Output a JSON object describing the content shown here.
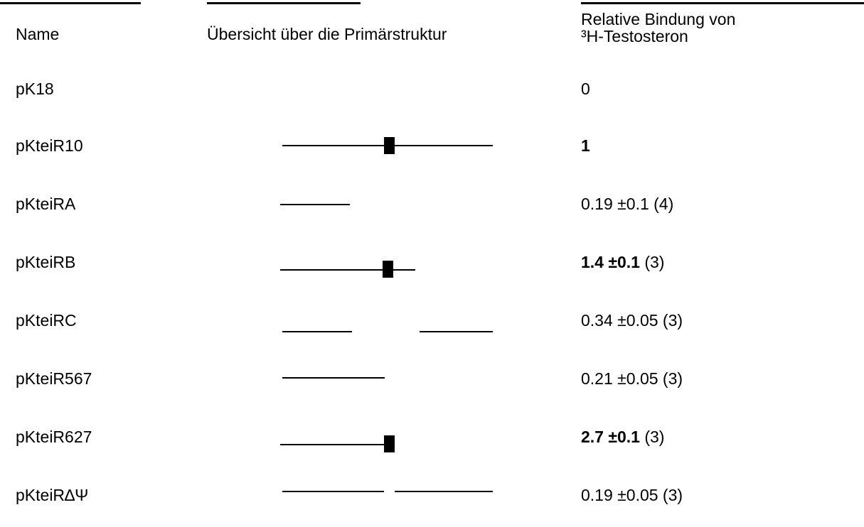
{
  "header": {
    "name_label": "Name",
    "overview_label": "Übersicht über die Primärstruktur",
    "binding_line1": "Relative Bindung von",
    "binding_line2": "³H-Testosteron"
  },
  "rows": [
    {
      "name": "pK18",
      "value_bold": "",
      "value_plain": "0",
      "structure": "none"
    },
    {
      "name": "pKteiR10",
      "value_bold": "1",
      "value_plain": "",
      "structure": "full-with-box"
    },
    {
      "name": "pKteiRA",
      "value_bold": "",
      "value_plain": "0.19 ±0.1 (4)",
      "structure": "short-left"
    },
    {
      "name": "pKteiRB",
      "value_bold": "1.4 ±0.1",
      "value_plain": " (3)",
      "structure": "left-with-box"
    },
    {
      "name": "pKteiRC",
      "value_bold": "",
      "value_plain": "0.34 ±0.05 (3)",
      "structure": "two-separated"
    },
    {
      "name": "pKteiR567",
      "value_bold": "",
      "value_plain": "0.21 ±0.05 (3)",
      "structure": "left-to-mid"
    },
    {
      "name": "pKteiR627",
      "value_bold": "2.7 ±0.1",
      "value_plain": " (3)",
      "structure": "left-ending-box"
    },
    {
      "name": "pKteiR∆Ψ",
      "value_bold": "",
      "value_plain": "0.19 ±0.05 (3)",
      "structure": "two-near-gap"
    }
  ]
}
